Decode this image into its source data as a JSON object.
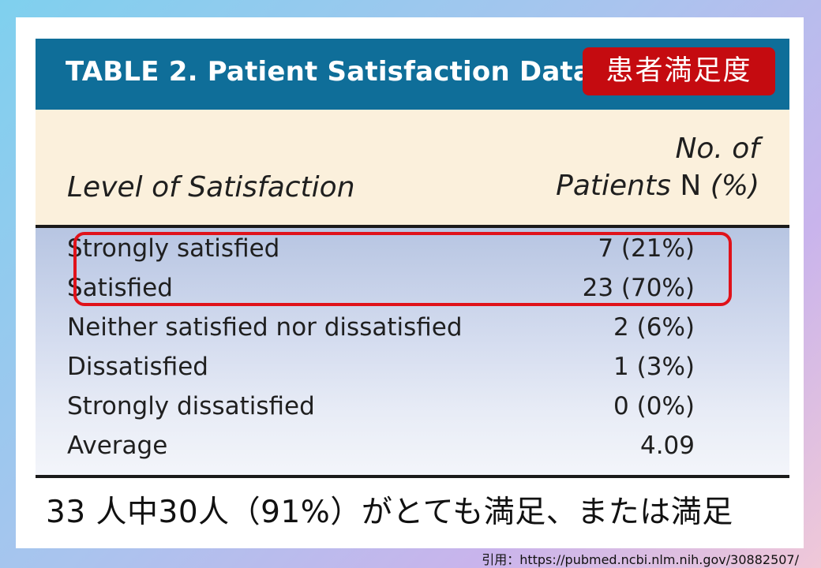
{
  "table": {
    "title": "TABLE 2.  Patient Satisfaction Data",
    "badge": "患者満足度",
    "col_left": "Level of Satisfaction",
    "col_right_line1": "No. of",
    "col_right_line2_italic": "Patients",
    "col_right_line2_plain": "N",
    "col_right_line2_pct": "(%)",
    "rows": [
      {
        "label": "Strongly satisfied",
        "value": "7 (21%)"
      },
      {
        "label": "Satisfied",
        "value": "23 (70%)"
      },
      {
        "label": "Neither satisfied nor dissatisfied",
        "value": "2 (6%)"
      },
      {
        "label": "Dissatisfied",
        "value": "1 (3%)"
      },
      {
        "label": "Strongly dissatisfied",
        "value": "0 (0%)"
      },
      {
        "label": "Average",
        "value": "4.09"
      }
    ]
  },
  "caption": "33 人中30人（91%）がとても満足、または満足",
  "citation": "引用：https://pubmed.ncbi.nlm.nih.gov/30882507/",
  "colors": {
    "header_bg": "#0f6e99",
    "badge_bg": "#c50b10",
    "highlight_border": "#e0121a",
    "col_head_bg": "#fbf0dc"
  }
}
